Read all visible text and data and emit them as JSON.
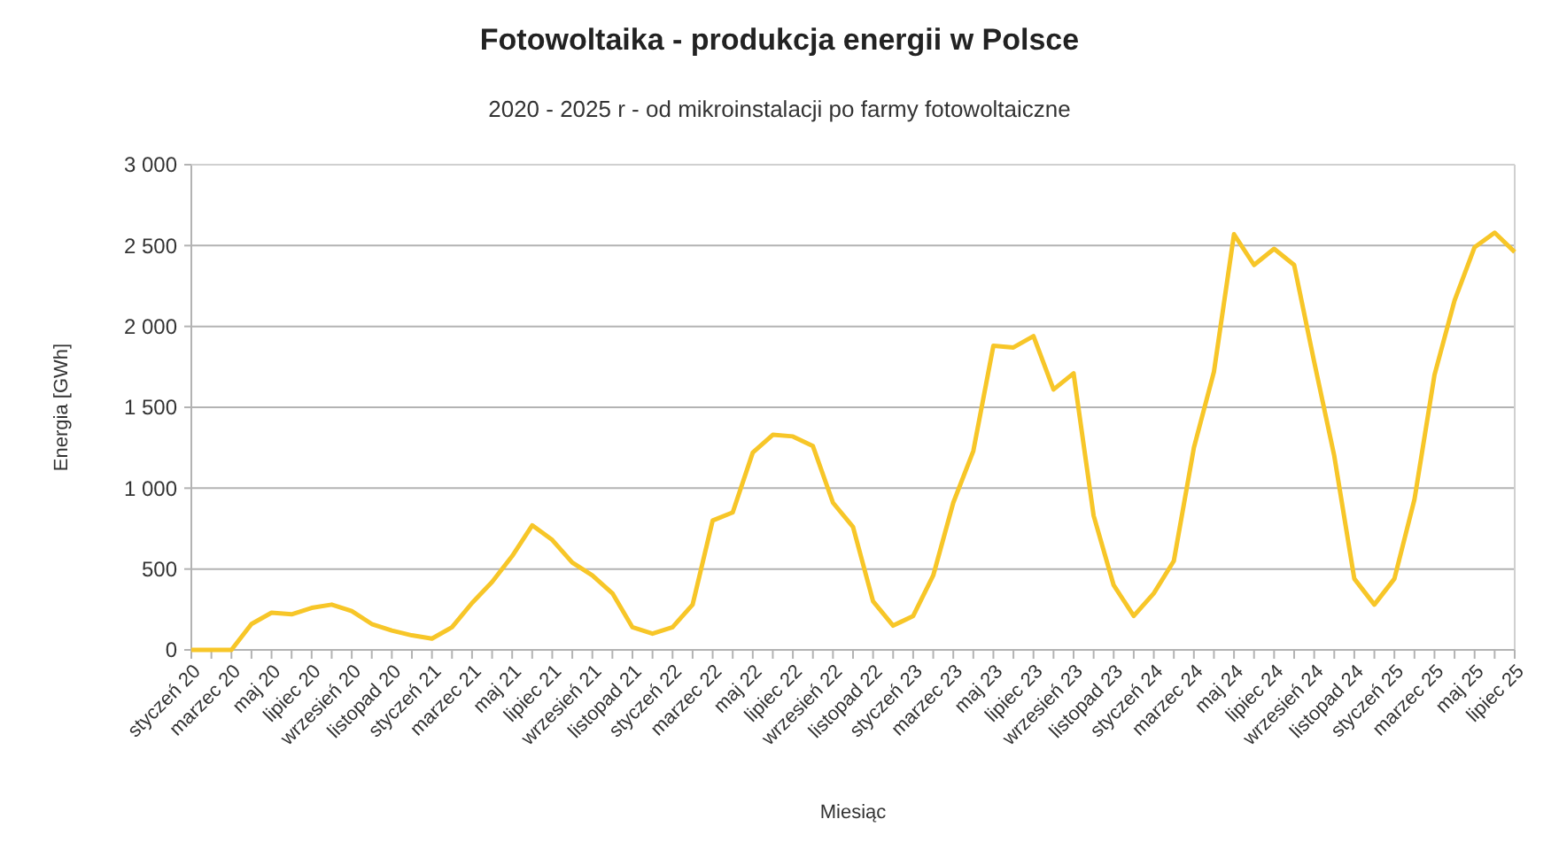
{
  "chart_data": {
    "type": "line",
    "title": "Fotowoltaika - produkcja energii w Polsce",
    "subtitle": "2020 - 2025 r - od mikroinstalacji po farmy fotowoltaiczne",
    "xlabel": "Miesiąc",
    "ylabel": "Energia [GWh]",
    "categories": [
      "styczeń 20",
      null,
      "marzec 20",
      null,
      "maj 20",
      null,
      "lipiec 20",
      null,
      "wrzesień 20",
      null,
      "listopad 20",
      null,
      "styczeń 21",
      null,
      "marzec 21",
      null,
      "maj 21",
      null,
      "lipiec 21",
      null,
      "wrzesień 21",
      null,
      "listopad 21",
      null,
      "styczeń 22",
      null,
      "marzec 22",
      null,
      "maj 22",
      null,
      "lipiec 22",
      null,
      "wrzesień 22",
      null,
      "listopad 22",
      null,
      "styczeń 23",
      null,
      "marzec 23",
      null,
      "maj 23",
      null,
      "lipiec 23",
      null,
      "wrzesień 23",
      null,
      "listopad 23",
      null,
      "styczeń 24",
      null,
      "marzec 24",
      null,
      "maj 24",
      null,
      "lipiec 24",
      null,
      "wrzesień 24",
      null,
      "listopad 24",
      null,
      "styczeń 25",
      null,
      "marzec 25",
      null,
      "maj 25",
      null,
      "lipiec 25"
    ],
    "series": [
      {
        "color": "#f7c628",
        "values": [
          0,
          0,
          0,
          160,
          230,
          220,
          260,
          280,
          240,
          160,
          120,
          90,
          70,
          140,
          290,
          420,
          580,
          770,
          680,
          540,
          460,
          350,
          140,
          100,
          140,
          280,
          800,
          850,
          1220,
          1330,
          1320,
          1260,
          910,
          760,
          300,
          150,
          210,
          460,
          910,
          1230,
          1880,
          1870,
          1940,
          1610,
          1710,
          830,
          400,
          210,
          350,
          550,
          1250,
          1720,
          2570,
          2380,
          2480,
          2380,
          1780,
          1200,
          440,
          280,
          440,
          930,
          1700,
          2160,
          2490,
          2580,
          2460
        ]
      }
    ],
    "ylim": [
      0,
      3000
    ],
    "yticks": [
      {
        "value": 0,
        "label": "0"
      },
      {
        "value": 500,
        "label": "500"
      },
      {
        "value": 1000,
        "label": "1 000"
      },
      {
        "value": 1500,
        "label": "1 500"
      },
      {
        "value": 2000,
        "label": "2 000"
      },
      {
        "value": 2500,
        "label": "2 500"
      },
      {
        "value": 3000,
        "label": "3 000"
      }
    ],
    "grid": "y",
    "marker": "none",
    "line_style": "solid"
  }
}
